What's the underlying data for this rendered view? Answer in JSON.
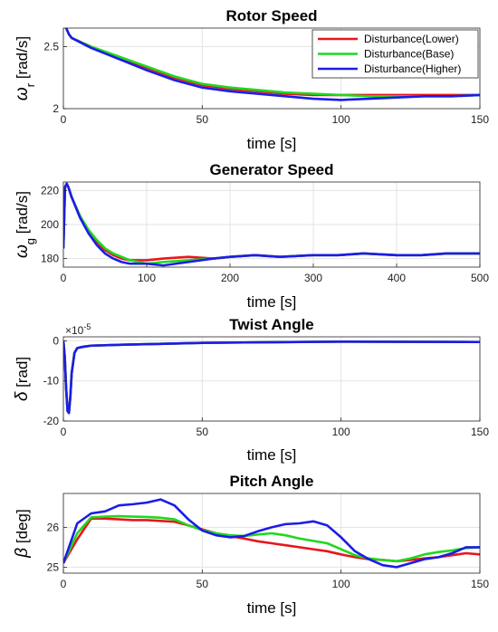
{
  "chart_data": [
    {
      "type": "line",
      "title": "Rotor Speed",
      "xlabel": "time [s]",
      "ylabel_symbol": "ω",
      "ylabel_sub": "r",
      "ylabel_unit": "[rad/s]",
      "xlim": [
        0,
        150
      ],
      "ylim": [
        2,
        2.65
      ],
      "xticks": [
        0,
        50,
        100,
        150
      ],
      "yticks": [
        2,
        2.5
      ],
      "ytick_labels": [
        "2",
        "2.5"
      ],
      "grid": true,
      "legend": {
        "placement": "top-right",
        "entries": [
          "Disturbance(Lower)",
          "Disturbance(Base)",
          "Disturbance(Higher)"
        ]
      },
      "series": [
        {
          "name": "Disturbance(Lower)",
          "color": "#e8161b",
          "x": [
            1,
            2,
            3,
            10,
            20,
            30,
            40,
            50,
            60,
            70,
            80,
            90,
            100,
            110,
            120,
            130,
            140,
            150
          ],
          "y": [
            2.65,
            2.6,
            2.57,
            2.5,
            2.41,
            2.33,
            2.25,
            2.19,
            2.16,
            2.14,
            2.12,
            2.11,
            2.11,
            2.11,
            2.11,
            2.11,
            2.11,
            2.11
          ]
        },
        {
          "name": "Disturbance(Base)",
          "color": "#1fd81f",
          "x": [
            1,
            2,
            3,
            10,
            20,
            30,
            40,
            50,
            60,
            70,
            80,
            90,
            100,
            110,
            120,
            130,
            140,
            150
          ],
          "y": [
            2.65,
            2.6,
            2.57,
            2.5,
            2.42,
            2.34,
            2.26,
            2.2,
            2.17,
            2.15,
            2.13,
            2.12,
            2.11,
            2.1,
            2.1,
            2.1,
            2.1,
            2.11
          ]
        },
        {
          "name": "Disturbance(Higher)",
          "color": "#1c1ce8",
          "x": [
            1,
            2,
            3,
            10,
            20,
            30,
            40,
            50,
            60,
            70,
            80,
            90,
            100,
            110,
            120,
            130,
            140,
            150
          ],
          "y": [
            2.65,
            2.6,
            2.57,
            2.49,
            2.4,
            2.31,
            2.23,
            2.17,
            2.14,
            2.12,
            2.1,
            2.08,
            2.07,
            2.08,
            2.09,
            2.1,
            2.1,
            2.11
          ]
        }
      ]
    },
    {
      "type": "line",
      "title": "Generator Speed",
      "xlabel": "time [s]",
      "ylabel_symbol": "ω",
      "ylabel_sub": "g",
      "ylabel_unit": "[rad/s]",
      "xlim": [
        0,
        500
      ],
      "ylim": [
        175,
        225
      ],
      "xticks": [
        0,
        100,
        200,
        300,
        400,
        500
      ],
      "yticks": [
        180,
        200,
        220
      ],
      "ytick_labels": [
        "180",
        "200",
        "220"
      ],
      "grid": true,
      "series": [
        {
          "name": "Disturbance(Lower)",
          "color": "#e8161b",
          "x": [
            0,
            2,
            4,
            6,
            10,
            20,
            30,
            40,
            50,
            60,
            70,
            80,
            90,
            100,
            120,
            150,
            180,
            200,
            230,
            260,
            300,
            330,
            360,
            400,
            430,
            460,
            500
          ],
          "y": [
            186,
            222,
            224,
            222,
            216,
            205,
            196,
            190,
            185,
            182,
            180,
            179,
            179,
            179,
            180,
            181,
            180,
            181,
            182,
            181,
            182,
            182,
            183,
            182,
            182,
            183,
            183
          ]
        },
        {
          "name": "Disturbance(Base)",
          "color": "#1fd81f",
          "x": [
            0,
            2,
            4,
            6,
            10,
            20,
            30,
            40,
            50,
            60,
            70,
            80,
            90,
            100,
            120,
            150,
            180,
            200,
            230,
            260,
            300,
            330,
            360,
            400,
            430,
            460,
            500
          ],
          "y": [
            186,
            222,
            224,
            222,
            216,
            205,
            197,
            191,
            186,
            183,
            181,
            179,
            178,
            177,
            178,
            179,
            180,
            181,
            182,
            181,
            182,
            182,
            183,
            182,
            182,
            183,
            183
          ]
        },
        {
          "name": "Disturbance(Higher)",
          "color": "#1c1ce8",
          "x": [
            0,
            2,
            4,
            6,
            10,
            20,
            30,
            40,
            50,
            60,
            70,
            80,
            90,
            100,
            120,
            150,
            180,
            200,
            230,
            260,
            300,
            330,
            360,
            400,
            430,
            460,
            500
          ],
          "y": [
            186,
            222,
            224,
            222,
            216,
            204,
            195,
            188,
            183,
            180,
            178,
            177,
            177,
            177,
            176,
            178,
            180,
            181,
            182,
            181,
            182,
            182,
            183,
            182,
            182,
            183,
            183
          ]
        }
      ]
    },
    {
      "type": "line",
      "title": "Twist Angle",
      "xlabel": "time [s]",
      "ylabel_symbol": "δ",
      "ylabel_unit": "[rad]",
      "y_multiplier": "×10",
      "y_multiplier_exp": "-5",
      "xlim": [
        0,
        150
      ],
      "ylim": [
        -20,
        1
      ],
      "xticks": [
        0,
        50,
        100,
        150
      ],
      "yticks": [
        -20,
        -10,
        0
      ],
      "ytick_labels": [
        "-20",
        "-10",
        "0"
      ],
      "grid": true,
      "series": [
        {
          "name": "Disturbance(Lower)",
          "color": "#e8161b",
          "x": [
            0,
            0.5,
            1,
            1.5,
            2,
            2.5,
            3,
            4,
            5,
            7,
            10,
            20,
            50,
            100,
            150
          ],
          "y": [
            0,
            -4,
            -12,
            -17.5,
            -18,
            -14,
            -8,
            -3,
            -1.8,
            -1.5,
            -1.2,
            -1,
            -0.5,
            -0.2,
            -0.3
          ]
        },
        {
          "name": "Disturbance(Base)",
          "color": "#1fd81f",
          "x": [
            0,
            0.5,
            1,
            1.5,
            2,
            2.5,
            3,
            4,
            5,
            7,
            10,
            20,
            50,
            100,
            150
          ],
          "y": [
            0,
            -4,
            -12,
            -17.5,
            -18,
            -14,
            -8,
            -3,
            -1.8,
            -1.5,
            -1.2,
            -1,
            -0.5,
            -0.2,
            -0.3
          ]
        },
        {
          "name": "Disturbance(Higher)",
          "color": "#1c1ce8",
          "x": [
            0,
            0.5,
            1,
            1.5,
            2,
            2.5,
            3,
            4,
            5,
            7,
            10,
            20,
            50,
            100,
            150
          ],
          "y": [
            0,
            -4,
            -12,
            -17.5,
            -18,
            -14,
            -8,
            -3,
            -1.8,
            -1.5,
            -1.2,
            -1,
            -0.5,
            -0.2,
            -0.3
          ]
        }
      ]
    },
    {
      "type": "line",
      "title": "Pitch Angle",
      "xlabel": "time [s]",
      "ylabel_symbol": "β",
      "ylabel_unit": "[deg]",
      "xlim": [
        0,
        150
      ],
      "ylim": [
        24.85,
        26.85
      ],
      "xticks": [
        0,
        50,
        100,
        150
      ],
      "yticks": [
        25,
        26
      ],
      "ytick_labels": [
        "25",
        "26"
      ],
      "grid": true,
      "series": [
        {
          "name": "Disturbance(Lower)",
          "color": "#e8161b",
          "x": [
            0,
            5,
            10,
            15,
            20,
            25,
            30,
            35,
            40,
            45,
            50,
            55,
            60,
            65,
            70,
            75,
            80,
            85,
            90,
            95,
            100,
            105,
            110,
            115,
            120,
            125,
            130,
            135,
            140,
            145,
            150
          ],
          "y": [
            25.1,
            25.7,
            26.22,
            26.22,
            26.2,
            26.18,
            26.18,
            26.16,
            26.14,
            26.05,
            25.95,
            25.85,
            25.78,
            25.72,
            25.65,
            25.6,
            25.55,
            25.5,
            25.45,
            25.4,
            25.32,
            25.25,
            25.2,
            25.18,
            25.15,
            25.18,
            25.22,
            25.25,
            25.3,
            25.35,
            25.32
          ]
        },
        {
          "name": "Disturbance(Base)",
          "color": "#1fd81f",
          "x": [
            0,
            5,
            10,
            15,
            20,
            25,
            30,
            35,
            40,
            45,
            50,
            55,
            60,
            65,
            70,
            75,
            80,
            85,
            90,
            95,
            100,
            105,
            110,
            115,
            120,
            125,
            130,
            135,
            140,
            145,
            150
          ],
          "y": [
            25.1,
            25.85,
            26.25,
            26.27,
            26.28,
            26.27,
            26.26,
            26.24,
            26.2,
            26.05,
            25.93,
            25.85,
            25.8,
            25.78,
            25.82,
            25.85,
            25.8,
            25.72,
            25.66,
            25.6,
            25.45,
            25.3,
            25.22,
            25.18,
            25.15,
            25.22,
            25.32,
            25.38,
            25.42,
            25.48,
            25.5
          ]
        },
        {
          "name": "Disturbance(Higher)",
          "color": "#1c1ce8",
          "x": [
            0,
            5,
            10,
            15,
            20,
            25,
            30,
            35,
            40,
            45,
            50,
            55,
            60,
            65,
            70,
            75,
            80,
            85,
            90,
            95,
            100,
            105,
            110,
            115,
            120,
            125,
            130,
            135,
            140,
            145,
            150
          ],
          "y": [
            25.1,
            26.1,
            26.35,
            26.4,
            26.55,
            26.58,
            26.62,
            26.7,
            26.55,
            26.2,
            25.92,
            25.8,
            25.75,
            25.78,
            25.9,
            26.0,
            26.08,
            26.1,
            26.15,
            26.05,
            25.75,
            25.4,
            25.2,
            25.05,
            25.0,
            25.1,
            25.2,
            25.25,
            25.35,
            25.5,
            25.5
          ]
        }
      ]
    }
  ]
}
